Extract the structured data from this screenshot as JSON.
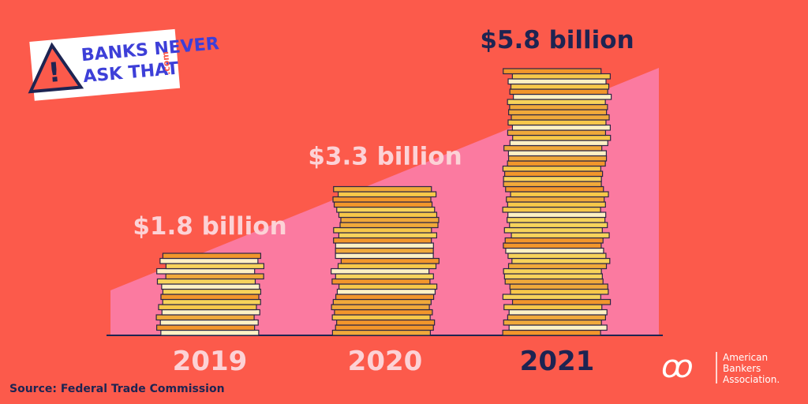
{
  "logo": {
    "line1": "BANKS NEVER",
    "line2": "ASK THAT",
    "suffix": ".com"
  },
  "chart_data": {
    "type": "coin-stack",
    "categories": [
      "2019",
      "2020",
      "2021"
    ],
    "values": [
      1.8,
      3.3,
      5.8
    ],
    "value_labels": [
      "$1.8 billion",
      "$3.3 billion",
      "$5.8 billion"
    ]
  },
  "source": "Source: Federal Trade Commission",
  "brand": {
    "line1": "American",
    "line2": "Bankers",
    "line3": "Association."
  }
}
